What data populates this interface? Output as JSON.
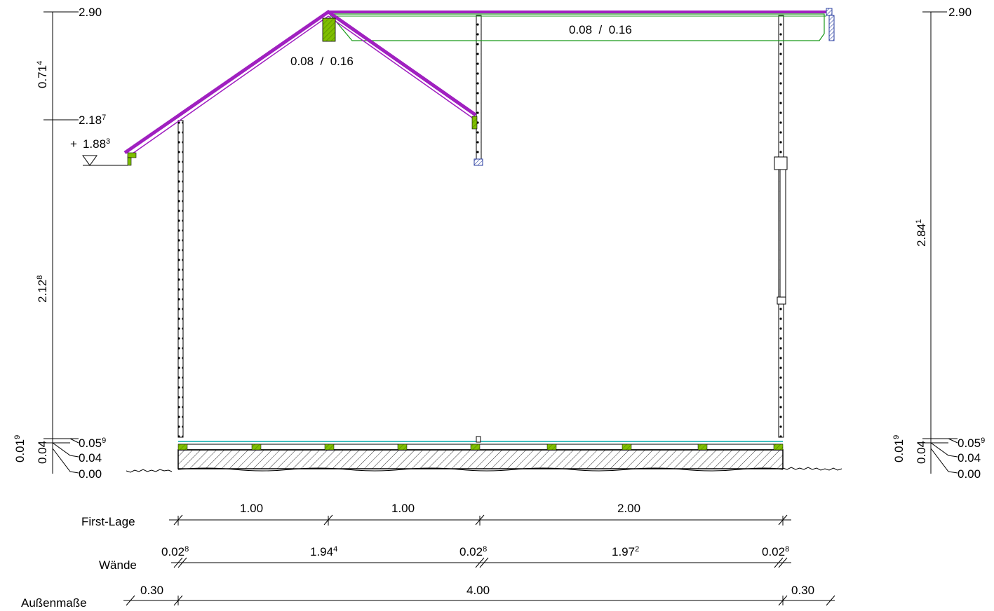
{
  "colors": {
    "roof": "#a020c0",
    "timber": "#7fbf00",
    "hatch_blue": "#2a3ea0",
    "insulation": "#40c0c0",
    "line": "#000000",
    "green_line": "#1a9a1a"
  },
  "left_scale": {
    "top": "2.90",
    "seg_upper": {
      "base": "0.71",
      "sup": "4"
    },
    "mid": {
      "base": "2.18",
      "sup": "7"
    },
    "seg_lower": {
      "base": "2.12",
      "sup": "8"
    },
    "eave_level": {
      "prefix": "+",
      "base": "1.88",
      "sup": "3"
    },
    "floor_top": {
      "base": "0.05",
      "sup": "9"
    },
    "floor_mid": "0.04",
    "zero": "0.00",
    "seg_small_1": {
      "base": "0.01",
      "sup": "9"
    },
    "seg_small_2": "0.04"
  },
  "right_scale": {
    "top": "2.90",
    "seg": {
      "base": "2.84",
      "sup": "1"
    },
    "floor_top": {
      "base": "0.05",
      "sup": "9"
    },
    "floor_mid": "0.04",
    "zero": "0.00",
    "seg_small_1": {
      "base": "0.01",
      "sup": "9"
    },
    "seg_small_2": "0.04"
  },
  "beam_labels": {
    "ridge": "0.08  /  0.16",
    "ceiling": "0.08  /  0.16"
  },
  "dim_rows": {
    "first_lage": {
      "label": "First-Lage",
      "values": [
        "1.00",
        "1.00",
        "2.00"
      ]
    },
    "waende": {
      "label": "Wände",
      "values": [
        {
          "base": "0.02",
          "sup": "8"
        },
        {
          "base": "1.94",
          "sup": "4"
        },
        {
          "base": "0.02",
          "sup": "8"
        },
        {
          "base": "1.97",
          "sup": "2"
        },
        {
          "base": "0.02",
          "sup": "8"
        }
      ]
    },
    "aussen": {
      "label": "Außenmaße",
      "values": [
        "0.30",
        "4.00",
        "0.30"
      ]
    }
  }
}
